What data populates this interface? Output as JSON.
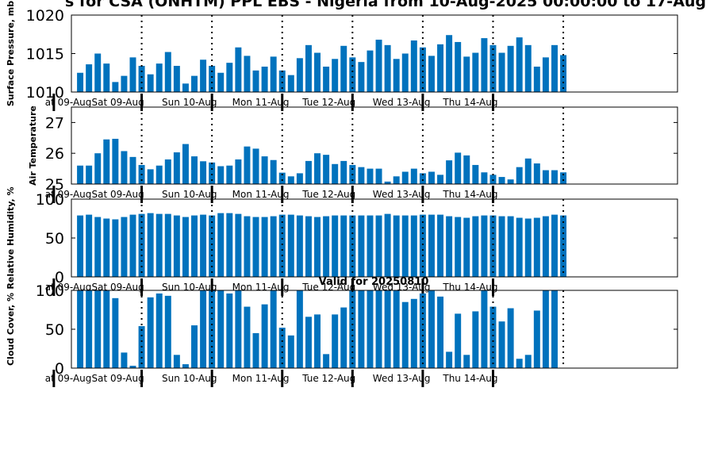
{
  "chart_data": [
    {
      "type": "bar",
      "title": "s for CSA (ONHTM) PPL EBS  - Nigeria from 10-Aug-2025 00:00:00 to 17-Aug",
      "ylabel": "Surface Pressure, mb",
      "ylim": [
        1010,
        1020
      ],
      "yticks": [
        1010,
        1015,
        1020
      ],
      "day_labels": [
        "at 09-Aug",
        "Sat 09-Aug",
        "Sun 10-Aug",
        "Mon 11-Aug",
        "Tue 12-Aug",
        "Wed 13-Aug",
        "Thu 14-Aug"
      ],
      "values": [
        1012.5,
        1013.6,
        1015.0,
        1013.7,
        1011.3,
        1012.1,
        1014.5,
        1013.4,
        1012.3,
        1013.7,
        1015.2,
        1013.4,
        1011.1,
        1012.1,
        1014.2,
        1013.4,
        1012.5,
        1013.8,
        1015.8,
        1014.7,
        1012.8,
        1013.3,
        1014.6,
        1012.8,
        1012.2,
        1014.4,
        1016.1,
        1015.1,
        1013.3,
        1014.3,
        1016.0,
        1014.5,
        1013.9,
        1015.4,
        1016.8,
        1016.1,
        1014.3,
        1015.0,
        1016.7,
        1015.8,
        1014.7,
        1016.2,
        1017.4,
        1016.5,
        1014.6,
        1015.1,
        1017.0,
        1016.1,
        1015.1,
        1016.0,
        1017.1,
        1016.1,
        1013.3,
        1014.5,
        1016.1,
        1014.8
      ]
    },
    {
      "type": "bar",
      "ylabel": "Air Temperature",
      "ylim": [
        25,
        27.5
      ],
      "yticks": [
        25,
        26,
        27
      ],
      "day_labels": [
        "at 09-Aug",
        "Sat 09-Aug",
        "Sun 10-Aug",
        "Mon 11-Aug",
        "Tue 12-Aug",
        "Wed 13-Aug",
        "Thu 14-Aug"
      ],
      "values": [
        25.6,
        25.6,
        26.0,
        26.45,
        26.47,
        26.07,
        25.88,
        25.62,
        25.48,
        25.6,
        25.8,
        26.03,
        26.3,
        25.9,
        25.74,
        25.7,
        25.58,
        25.6,
        25.8,
        26.22,
        26.15,
        25.9,
        25.78,
        25.37,
        25.25,
        25.35,
        25.75,
        26.0,
        25.95,
        25.65,
        25.75,
        25.62,
        25.55,
        25.5,
        25.5,
        25.08,
        25.25,
        25.4,
        25.5,
        25.35,
        25.4,
        25.3,
        25.77,
        26.02,
        25.93,
        25.62,
        25.38,
        25.3,
        25.23,
        25.15,
        25.55,
        25.83,
        25.67,
        25.45,
        25.45,
        25.38
      ]
    },
    {
      "type": "bar",
      "ylabel": "Relative Humidity, %",
      "ylim": [
        0,
        100
      ],
      "yticks": [
        0,
        50,
        100
      ],
      "day_labels": [
        "at 09-Aug",
        "Sat 09-Aug",
        "Sun 10-Aug",
        "Mon 11-Aug",
        "Tue 12-Aug",
        "Wed 13-Aug",
        "Thu 14-Aug"
      ],
      "values": [
        79,
        80,
        77,
        75,
        74,
        77,
        80,
        81,
        82,
        81,
        81,
        79,
        77,
        79,
        80,
        79,
        82,
        82,
        81,
        78,
        77,
        77,
        78,
        80,
        80,
        79,
        78,
        77,
        78,
        79,
        79,
        79,
        79,
        79,
        79,
        81,
        79,
        79,
        79,
        80,
        80,
        80,
        78,
        77,
        76,
        78,
        79,
        79,
        78,
        78,
        76,
        75,
        76,
        78,
        80,
        79
      ]
    },
    {
      "type": "bar",
      "title": "Valid for 20250810",
      "ylabel": "Cloud Cover, %",
      "ylim": [
        0,
        100
      ],
      "yticks": [
        0,
        50,
        100
      ],
      "day_labels": [
        "at 09-Aug",
        "Sat 09-Aug",
        "Sun 10-Aug",
        "Mon 11-Aug",
        "Tue 12-Aug",
        "Wed 13-Aug",
        "Thu 14-Aug"
      ],
      "values": [
        100,
        100,
        100,
        100,
        90,
        20,
        3,
        54,
        91,
        96,
        93,
        17,
        5,
        55,
        100,
        100,
        100,
        96,
        100,
        79,
        45,
        82,
        100,
        52,
        42,
        100,
        66,
        69,
        18,
        69,
        78,
        100,
        100,
        100,
        100,
        100,
        100,
        85,
        89,
        96,
        100,
        92,
        21,
        70,
        17,
        73,
        100,
        79,
        60,
        77,
        12,
        17,
        74,
        100,
        100
      ]
    }
  ]
}
